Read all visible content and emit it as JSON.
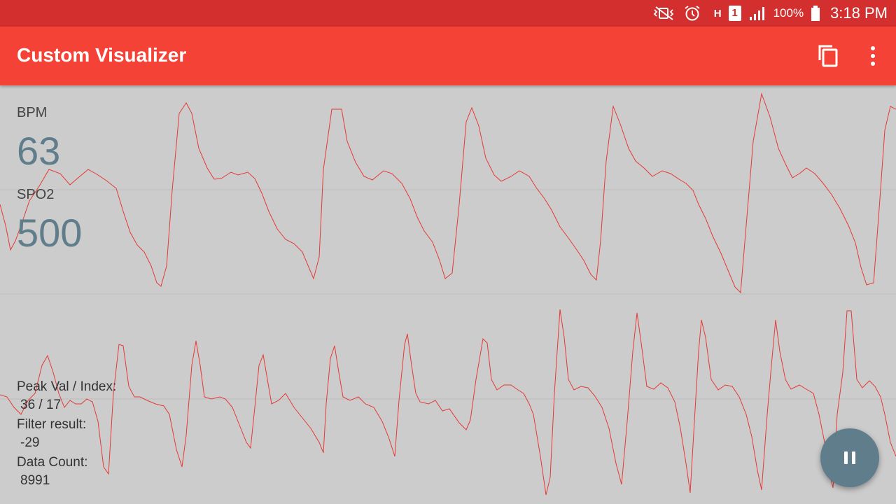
{
  "statusbar": {
    "icons": [
      "mute-vibrate-icon",
      "alarm-icon",
      "network-h-icon",
      "sim-1-icon",
      "signal-icon",
      "battery-icon"
    ],
    "network_type": "H",
    "sim_slot": "1",
    "battery": "100%",
    "time": "3:18 PM"
  },
  "appbar": {
    "title": "Custom Visualizer",
    "actions": [
      "copy-icon",
      "more-vert-icon"
    ]
  },
  "readouts": {
    "bpm_label": "BPM",
    "bpm_value": "63",
    "spo2_label": "SPO2",
    "spo2_value": "500"
  },
  "info": {
    "peak_label": "Peak Val / Index:",
    "peak_value": "36 / 17",
    "filter_label": "Filter result:",
    "filter_value": "-29",
    "count_label": "Data Count:",
    "count_value": "8991"
  },
  "fab": {
    "icon": "pause-icon"
  },
  "colors": {
    "statusbar": "#d32f2f",
    "appbar": "#f44336",
    "background": "#cccccc",
    "trace": "#e53935",
    "value": "#607d8b",
    "fab": "#607d8b"
  }
}
